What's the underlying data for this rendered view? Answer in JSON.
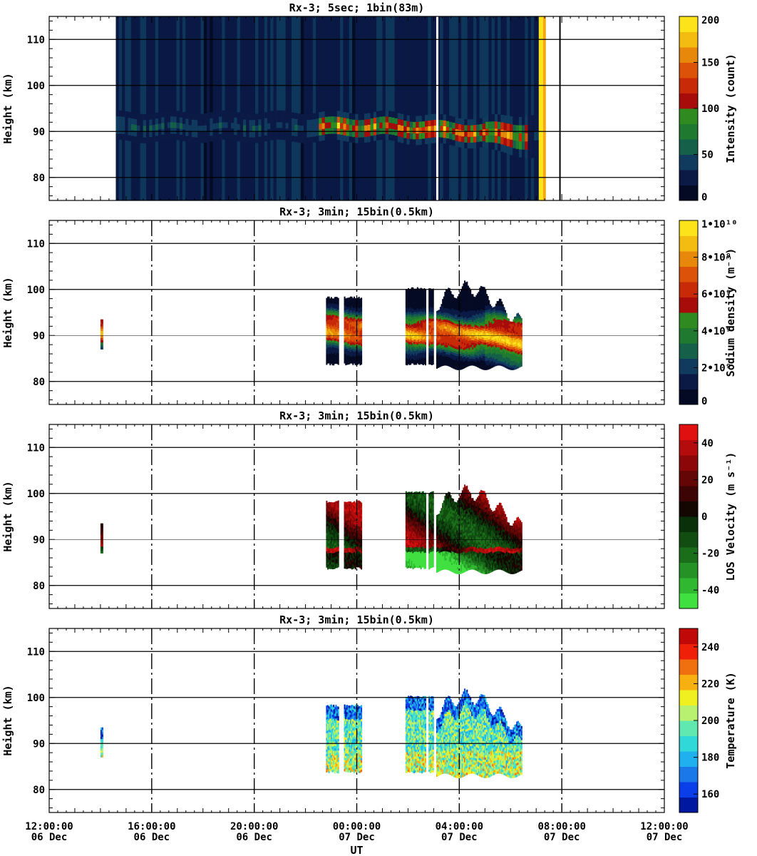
{
  "xaxis": {
    "label": "UT",
    "ticks": [
      {
        "time": "12:00:00",
        "date": "06 Dec"
      },
      {
        "time": "16:00:00",
        "date": "06 Dec"
      },
      {
        "time": "20:00:00",
        "date": "06 Dec"
      },
      {
        "time": "00:00:00",
        "date": "07 Dec"
      },
      {
        "time": "04:00:00",
        "date": "07 Dec"
      },
      {
        "time": "08:00:00",
        "date": "07 Dec"
      },
      {
        "time": "12:00:00",
        "date": "07 Dec"
      }
    ]
  },
  "chart_data": [
    {
      "type": "heatmap",
      "title": "Rx-3;  5sec; 1bin(83m)",
      "ylabel": "Height (km)",
      "ylim": [
        75,
        115
      ],
      "yticks": [
        80,
        90,
        100,
        110
      ],
      "xlim": [
        "06 Dec 12:00:00",
        "07 Dec 12:00:00"
      ],
      "colorbar": {
        "label": "Intensity (count)",
        "range": [
          0,
          200
        ],
        "ticks": [
          "0",
          "50",
          "100",
          "150",
          "200"
        ],
        "colors": [
          "#040a24",
          "#0a1a45",
          "#103a5e",
          "#156048",
          "#1f7a30",
          "#2f8a1f",
          "#a80c0a",
          "#c82a08",
          "#dc5208",
          "#e8880a",
          "#f4bc10",
          "#fce31a"
        ]
      },
      "grid": true
    },
    {
      "type": "heatmap",
      "title": "Rx-3; 3min; 15bin(0.5km)",
      "ylabel": "Height (km)",
      "ylim": [
        75,
        115
      ],
      "yticks": [
        80,
        90,
        100,
        110
      ],
      "colorbar": {
        "label": "Sodium density (m⁻³)",
        "range": [
          0,
          10000000000
        ],
        "ticks": [
          "0",
          "2•10⁹",
          "4•10⁹",
          "6•10⁹",
          "8•10⁹",
          "1•10¹⁰"
        ],
        "colors": [
          "#040a24",
          "#0a1a45",
          "#103a5e",
          "#156048",
          "#1f7a30",
          "#2f8a1f",
          "#a80c0a",
          "#c82a08",
          "#dc5208",
          "#e8880a",
          "#f4bc10",
          "#fce31a"
        ]
      },
      "grid": true
    },
    {
      "type": "heatmap",
      "title": "Rx-3; 3min; 15bin(0.5km)",
      "ylabel": "Height (km)",
      "ylim": [
        75,
        115
      ],
      "yticks": [
        80,
        90,
        100,
        110
      ],
      "colorbar": {
        "label": "LOS Velocity (m s⁻¹)",
        "range": [
          -50,
          50
        ],
        "ticks": [
          "-40",
          "-20",
          "0",
          "20",
          "40"
        ],
        "colors": [
          "#40e040",
          "#30b830",
          "#259225",
          "#1a6e1a",
          "#114d11",
          "#0a300a",
          "#140600",
          "#3c0404",
          "#640606",
          "#8c0808",
          "#b40c0c",
          "#e01010"
        ]
      },
      "grid": true
    },
    {
      "type": "heatmap",
      "title": "Rx-3; 3min; 15bin(0.5km)",
      "ylabel": "Height (km)",
      "ylim": [
        75,
        115
      ],
      "yticks": [
        80,
        90,
        100,
        110
      ],
      "colorbar": {
        "label": "Temperature (K)",
        "range": [
          150,
          250
        ],
        "ticks": [
          "160",
          "180",
          "200",
          "220",
          "240"
        ],
        "colors": [
          "#0018a0",
          "#0a3ee8",
          "#1a78e8",
          "#20b0f0",
          "#30d8d8",
          "#60e8b0",
          "#b8f070",
          "#f0f020",
          "#f8b010",
          "#f07010",
          "#f02008",
          "#c00808"
        ]
      },
      "grid": true
    }
  ]
}
